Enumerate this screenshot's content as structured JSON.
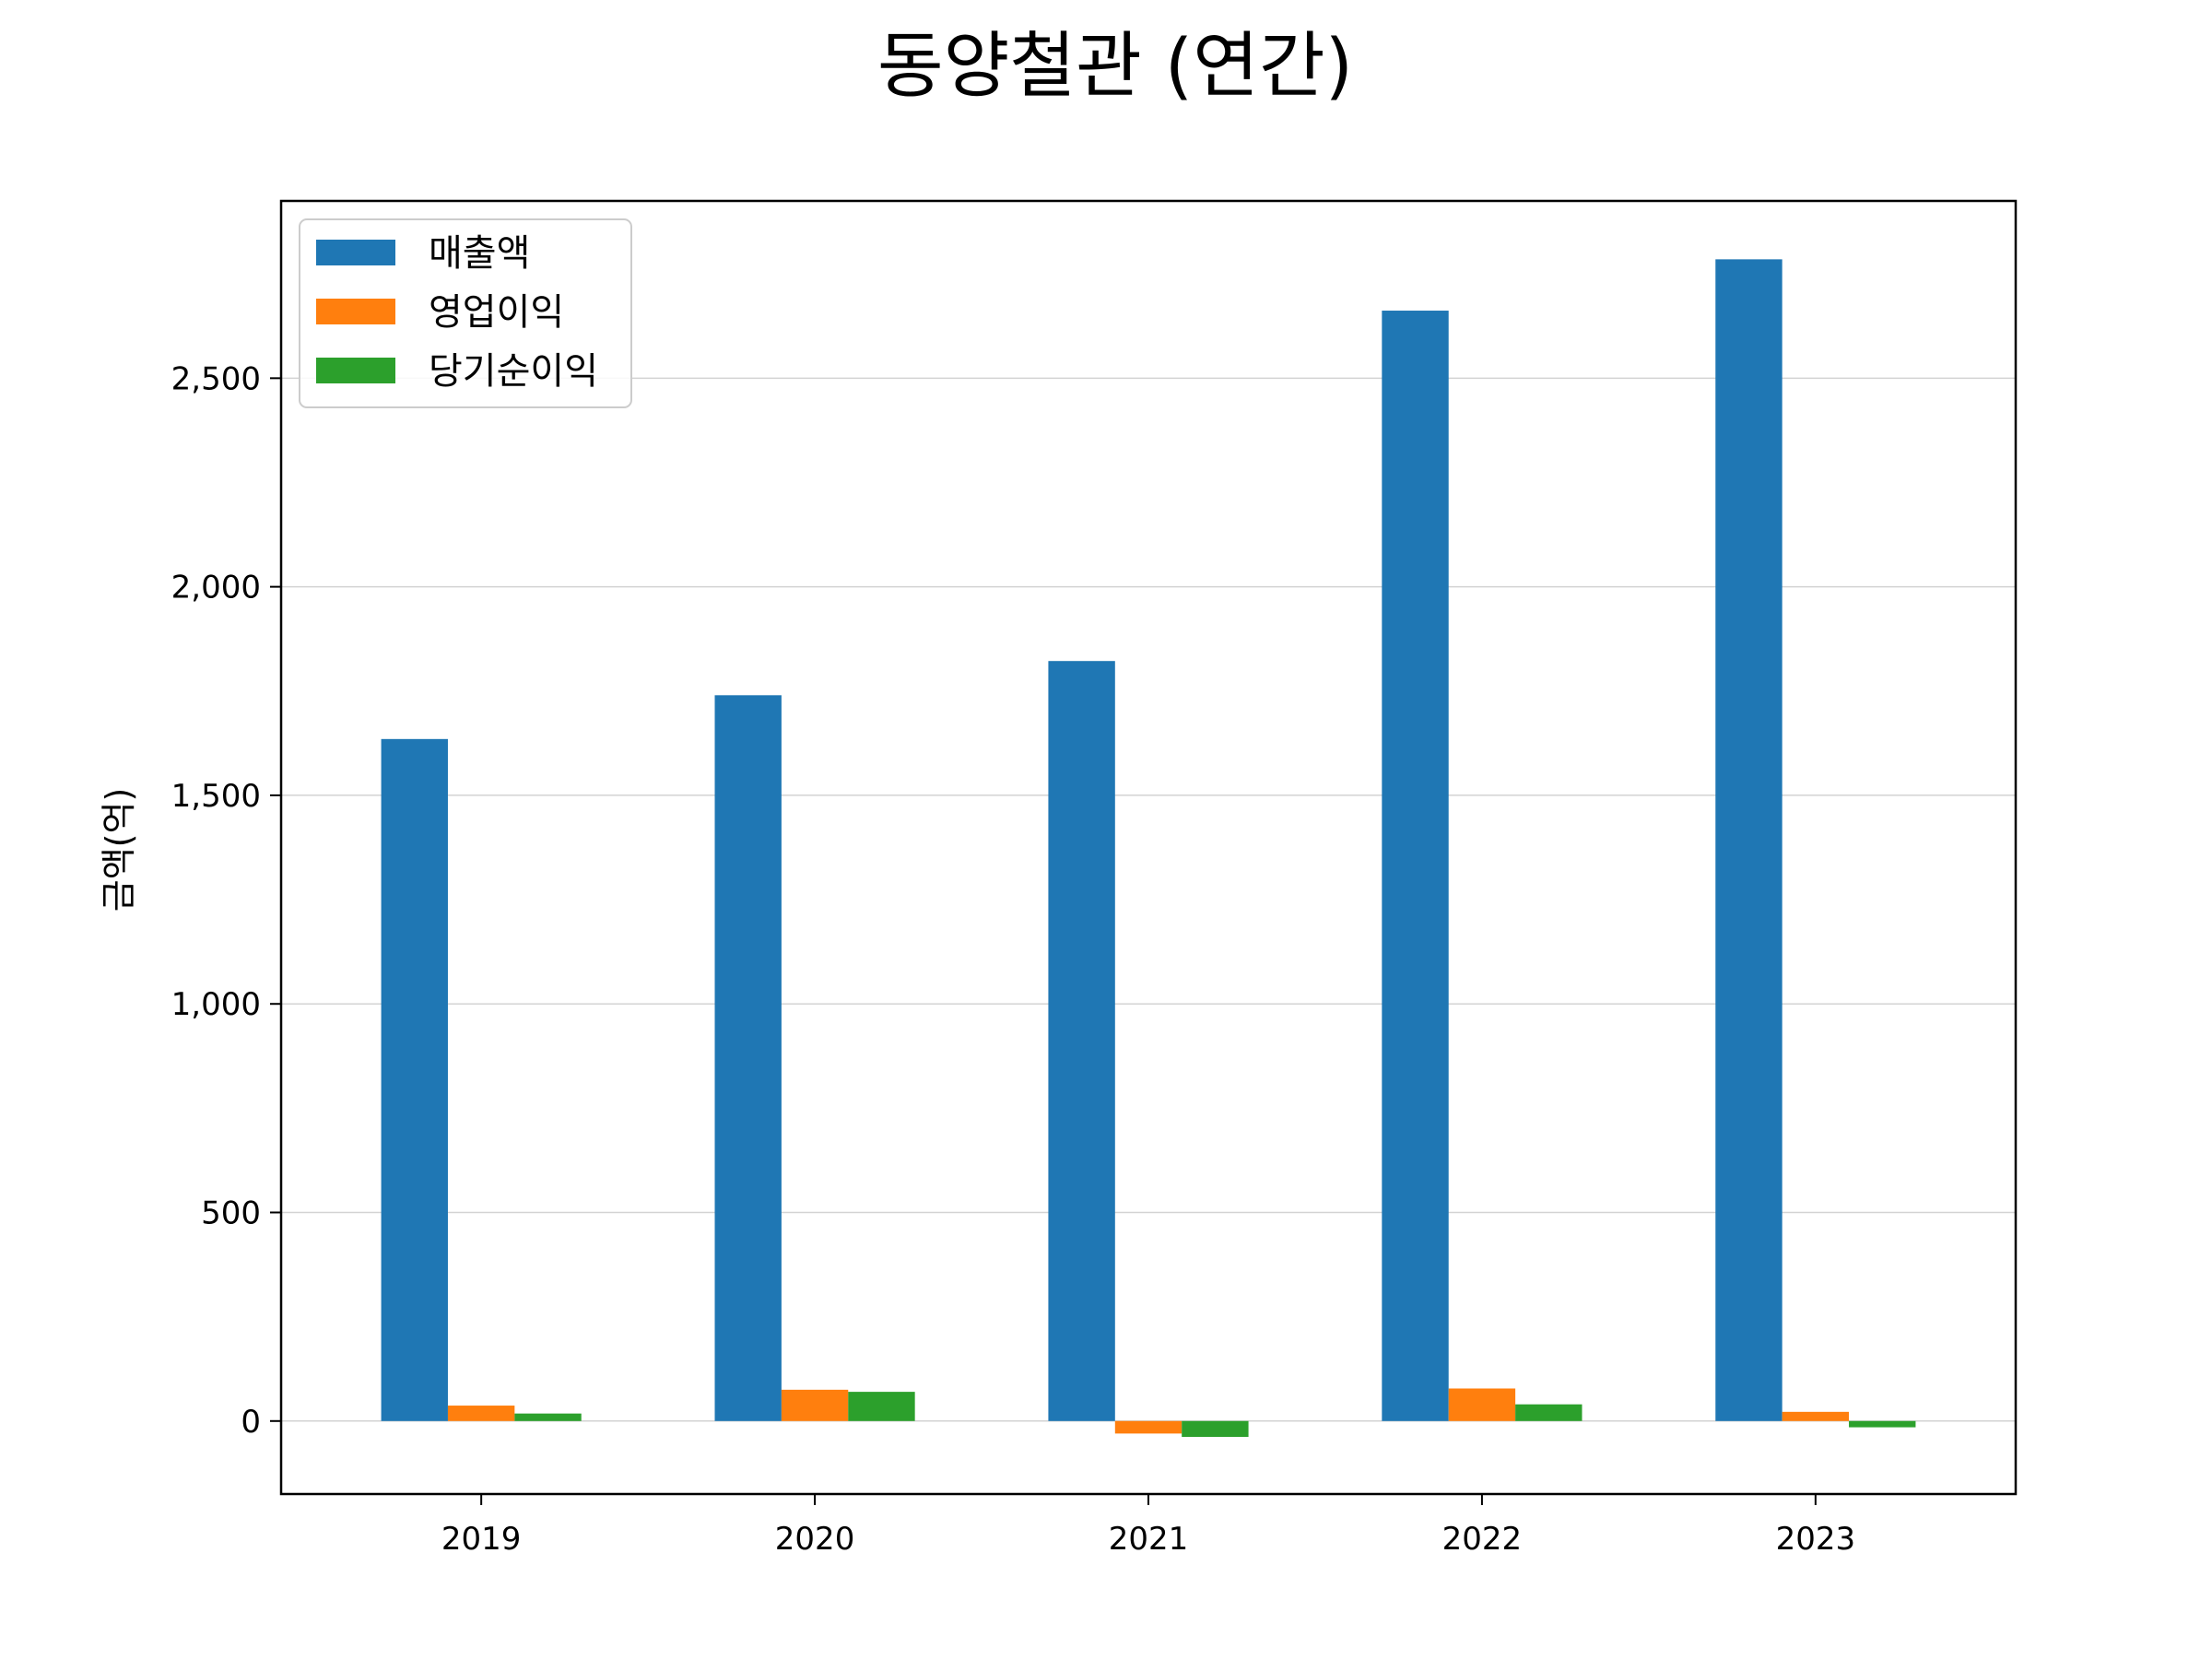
{
  "chart_data": {
    "type": "bar",
    "title": "동양철관 (연간)",
    "xlabel": "",
    "ylabel": "금액(억)",
    "categories": [
      "2019",
      "2020",
      "2021",
      "2022",
      "2023"
    ],
    "series": [
      {
        "name": "매출액",
        "color": "#1f77b4",
        "values": [
          1635,
          1740,
          1822,
          2662,
          2785
        ]
      },
      {
        "name": "영업이익",
        "color": "#ff7f0e",
        "values": [
          37,
          75,
          -30,
          78,
          22
        ]
      },
      {
        "name": "당기순이익",
        "color": "#2ca02c",
        "values": [
          18,
          70,
          -38,
          40,
          -15
        ]
      }
    ],
    "yticks": [
      0,
      500,
      1000,
      1500,
      2000,
      2500
    ],
    "ytick_labels": [
      "0",
      "500",
      "1,000",
      "1,500",
      "2,000",
      "2,500"
    ],
    "ylim": [
      -175,
      2925
    ],
    "grid": "horizontal",
    "legend": "top-left"
  }
}
